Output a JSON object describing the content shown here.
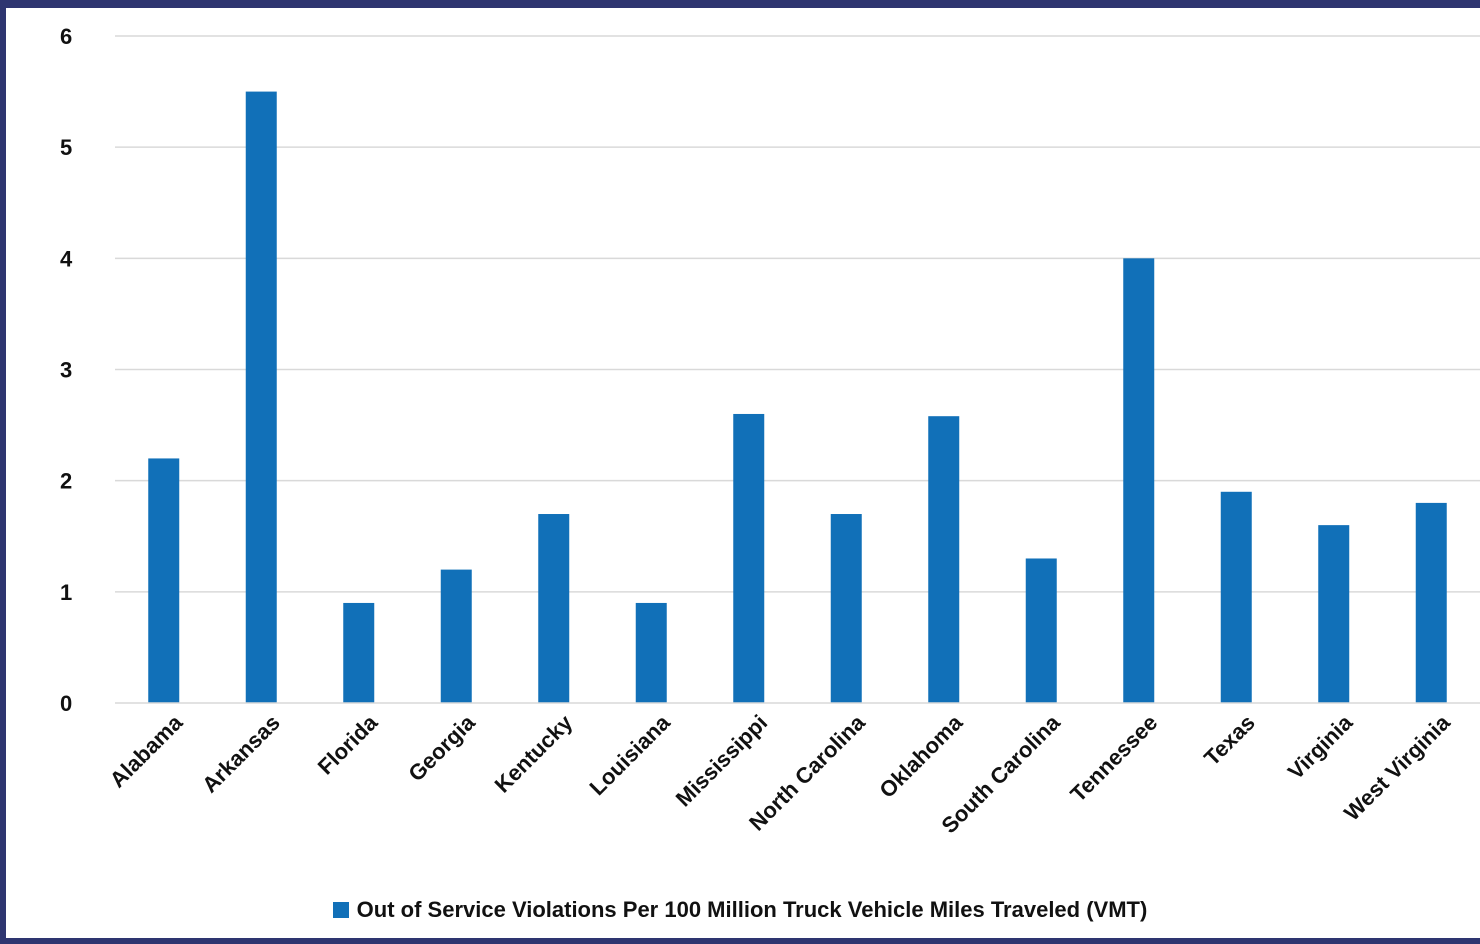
{
  "chart_data": {
    "type": "bar",
    "categories": [
      "Alabama",
      "Arkansas",
      "Florida",
      "Georgia",
      "Kentucky",
      "Louisiana",
      "Mississippi",
      "North Carolina",
      "Oklahoma",
      "South Carolina",
      "Tennessee",
      "Texas",
      "Virginia",
      "West Virginia"
    ],
    "series": [
      {
        "name": "Out of Service Violations Per 100 Million Truck Vehicle Miles Traveled (VMT)",
        "values": [
          2.2,
          5.5,
          0.9,
          1.2,
          1.7,
          0.9,
          2.6,
          1.7,
          2.58,
          1.3,
          4.0,
          1.9,
          1.6,
          1.8
        ],
        "color": "#1170b8"
      }
    ],
    "yticks": [
      "0",
      "1",
      "2",
      "3",
      "4",
      "5",
      "6"
    ],
    "ylim": [
      0,
      6
    ],
    "grid": true,
    "legend_position": "bottom",
    "frame_color": "#2e3570",
    "grid_color": "#d9d9d9"
  }
}
